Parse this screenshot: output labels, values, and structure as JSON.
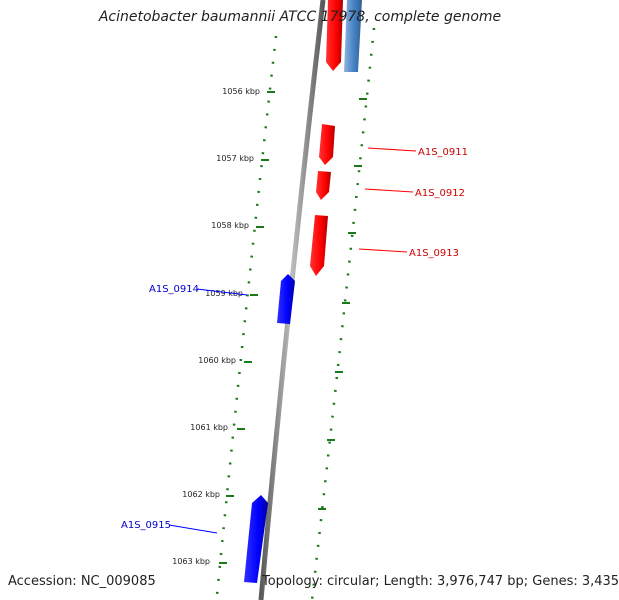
{
  "title": "Acinetobacter baumannii ATCC 17978, complete genome",
  "accession_label": "Accession: NC_009085",
  "summary_label": "Topology: circular; Length: 3,976,747 bp; Genes: 3,435",
  "colors": {
    "forward": "#ff0000",
    "reverse": "#0000ff",
    "light_blue": "#4a86c8",
    "ruler": "#1a7a1a",
    "backbone": "#808080"
  },
  "ruler": {
    "unit": "kbp",
    "ticks": [
      "1056 kbp",
      "1057 kbp",
      "1058 kbp",
      "1059 kbp",
      "1060 kbp",
      "1061 kbp",
      "1062 kbp",
      "1063 kbp"
    ]
  },
  "genes": [
    {
      "id": "A1S_0911",
      "strand": "forward"
    },
    {
      "id": "A1S_0912",
      "strand": "forward"
    },
    {
      "id": "A1S_0913",
      "strand": "forward"
    },
    {
      "id": "A1S_0914",
      "strand": "reverse"
    },
    {
      "id": "A1S_0915",
      "strand": "reverse"
    }
  ]
}
